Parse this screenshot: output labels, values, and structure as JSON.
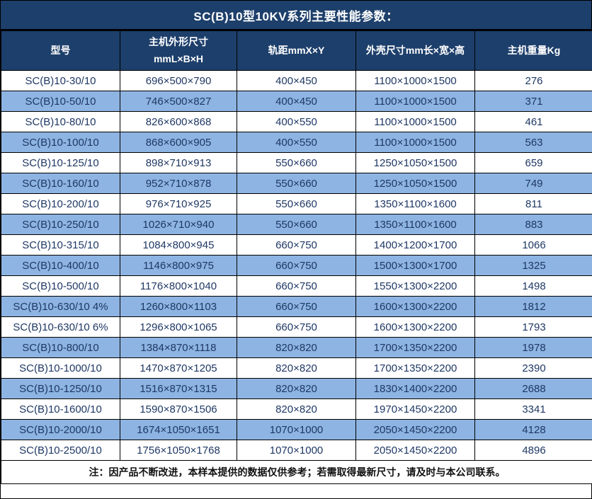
{
  "title": "SC(B)10型10KV系列主要性能参数：",
  "colors": {
    "header_bg": "#1d3f6b",
    "row_alt_bg": "#8db4e2",
    "header_text": "#ffffff",
    "body_text": "#1f3864",
    "note_text": "#111111",
    "border_color": "#000000"
  },
  "table": {
    "columns": [
      "型号",
      "主机外形尺寸\nmmL×B×H",
      "轨距mmX×Y",
      "外壳尺寸mm长×宽×高",
      "主机重量Kg"
    ],
    "rows": [
      [
        "SC(B)10-30/10",
        "696×500×790",
        "400×450",
        "1100×1000×1500",
        "276"
      ],
      [
        "SC(B)10-50/10",
        "746×500×827",
        "400×450",
        "1100×1000×1500",
        "371"
      ],
      [
        "SC(B)10-80/10",
        "826×600×868",
        "400×550",
        "1100×1000×1500",
        "461"
      ],
      [
        "SC(B)10-100/10",
        "868×600×905",
        "400×550",
        "1100×1000×1500",
        "563"
      ],
      [
        "SC(B)10-125/10",
        "898×710×913",
        "550×660",
        "1250×1050×1500",
        "659"
      ],
      [
        "SC(B)10-160/10",
        "952×710×878",
        "550×660",
        "1250×1050×1500",
        "749"
      ],
      [
        "SC(B)10-200/10",
        "976×710×925",
        "550×660",
        "1350×1100×1600",
        "811"
      ],
      [
        "SC(B)10-250/10",
        "1026×710×940",
        "550×660",
        "1350×1100×1600",
        "883"
      ],
      [
        "SC(B)10-315/10",
        "1084×800×945",
        "660×750",
        "1400×1200×1700",
        "1066"
      ],
      [
        "SC(B)10-400/10",
        "1146×800×975",
        "660×750",
        "1500×1300×1700",
        "1325"
      ],
      [
        "SC(B)10-500/10",
        "1176×800×1040",
        "660×750",
        "1550×1300×2200",
        "1498"
      ],
      [
        "SC(B)10-630/10 4%",
        "1260×800×1103",
        "660×750",
        "1600×1300×2200",
        "1812"
      ],
      [
        "SC(B)10-630/10 6%",
        "1296×800×1065",
        "660×750",
        "1600×1300×2200",
        "1793"
      ],
      [
        "SC(B)10-800/10",
        "1384×870×1118",
        "820×820",
        "1700×1350×2200",
        "1978"
      ],
      [
        "SC(B)10-1000/10",
        "1470×870×1205",
        "820×820",
        "1700×1350×2200",
        "2390"
      ],
      [
        "SC(B)10-1250/10",
        "1516×870×1315",
        "820×820",
        "1830×1400×2200",
        "2688"
      ],
      [
        "SC(B)10-1600/10",
        "1590×870×1506",
        "820×820",
        "1970×1450×2200",
        "3341"
      ],
      [
        "SC(B)10-2000/10",
        "1674×1050×1651",
        "1070×1000",
        "2050×1450×2200",
        "4128"
      ],
      [
        "SC(B)10-2500/10",
        "1756×1050×1768",
        "1070×1000",
        "2050×1450×2200",
        "4896"
      ]
    ],
    "note": "注：因产品不断改进，本样本提供的数据仅供参考；若需取得最新尺寸，请及时与本公司联系。"
  }
}
